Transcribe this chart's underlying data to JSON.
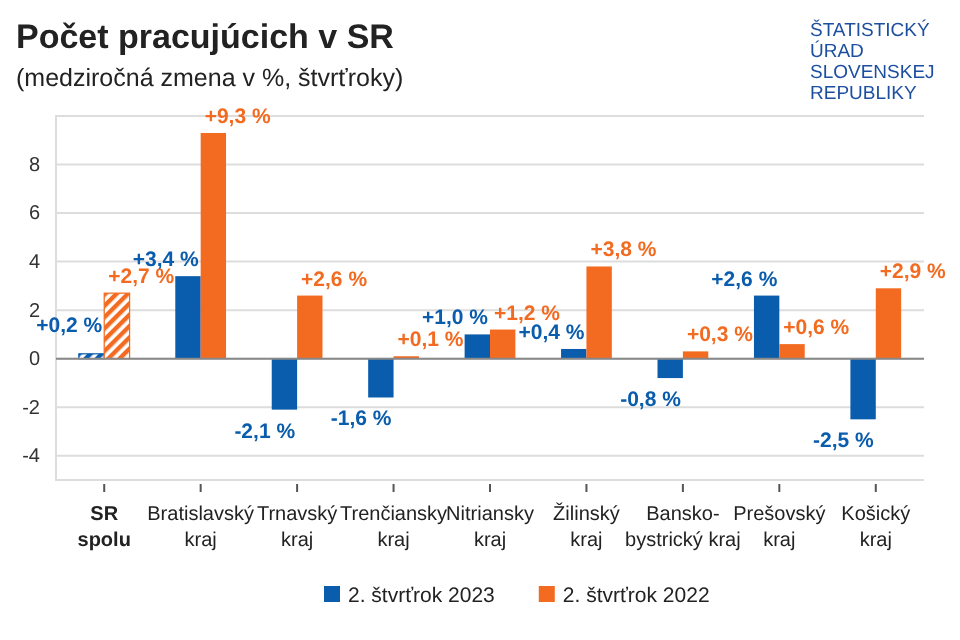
{
  "chart_data": {
    "type": "bar",
    "title": "Počet pracujúcich v SR",
    "subtitle": "(medziročná zmena v %, štvrťroky)",
    "annotations": [
      "ŠTATISTICKÝ ÚRAD SLOVENSKEJ REPUBLIKY"
    ],
    "categories": [
      "SR spolu",
      "Bratislavský kraj",
      "Trnavský kraj",
      "Trenčiansky kraj",
      "Nitriansky kraj",
      "Žilinský kraj",
      "Bansko-bystrický kraj",
      "Prešovský kraj",
      "Košický kraj"
    ],
    "series": [
      {
        "name": "2. štvrťrok 2023",
        "color": "#0a5cad",
        "values": [
          0.2,
          3.4,
          -2.1,
          -1.6,
          1.0,
          0.4,
          -0.8,
          2.6,
          -2.5
        ],
        "value_labels": [
          "+0,2 %",
          "+3,4 %",
          "-2,1 %",
          "-1,6 %",
          "+1,0 %",
          "+0,4 %",
          "-0,8 %",
          "+2,6 %",
          "-2,5 %"
        ]
      },
      {
        "name": "2. štvrťrok 2022",
        "color": "#f26b21",
        "values": [
          2.7,
          9.3,
          2.6,
          0.1,
          1.2,
          3.8,
          0.3,
          0.6,
          2.9
        ],
        "value_labels": [
          "+2,7 %",
          "+9,3 %",
          "+2,6 %",
          "+0,1 %",
          "+1,2 %",
          "+3,8 %",
          "+0,3 %",
          "+0,6 %",
          "+2,9 %"
        ]
      }
    ],
    "ylim": [
      -5,
      10
    ],
    "yticks": [
      -4,
      -2,
      0,
      2,
      4,
      6,
      8
    ],
    "grid": "y",
    "legend": "bottom"
  }
}
